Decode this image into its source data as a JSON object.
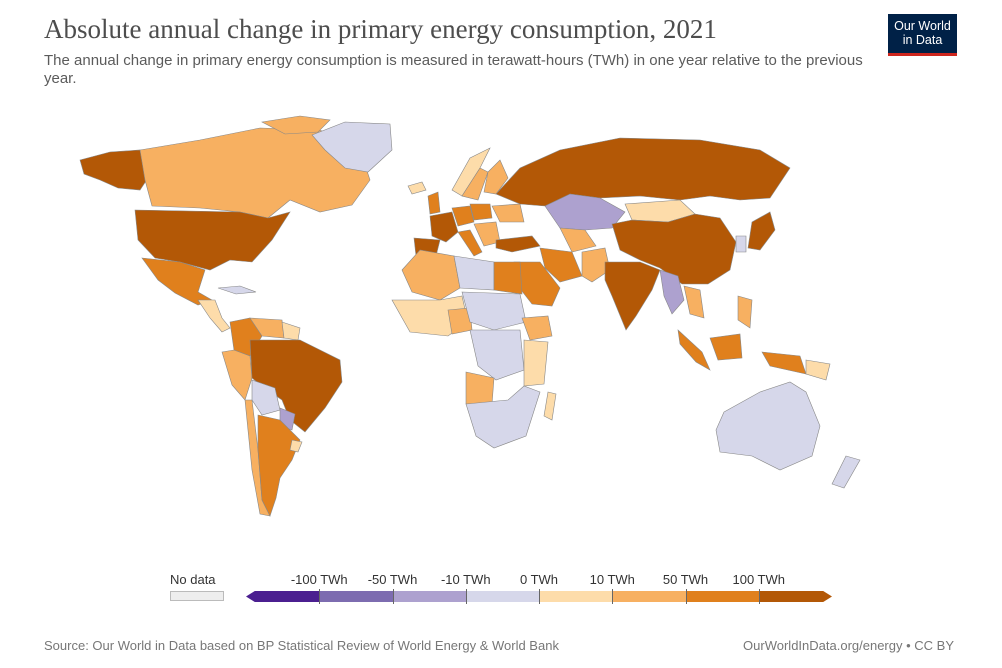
{
  "header": {
    "title": "Absolute annual change in primary energy consumption, 2021",
    "subtitle": "The annual change in primary energy consumption is measured in terawatt-hours (TWh) in one year relative to the previous year."
  },
  "logo": {
    "line1": "Our World",
    "line2": "in Data",
    "bg_color": "#002147",
    "accent_color": "#ce261e"
  },
  "legend": {
    "no_data_label": "No data",
    "no_data_color": "#eeeeee",
    "tick_labels": [
      "-100 TWh",
      "-50 TWh",
      "-10 TWh",
      "0 TWh",
      "10 TWh",
      "50 TWh",
      "100 TWh"
    ],
    "bin_colors": [
      "#4b1f90",
      "#7d6cb0",
      "#ada1cf",
      "#d6d7ea",
      "#fddcaa",
      "#f7b061",
      "#e0801d",
      "#b35806"
    ]
  },
  "map_data": {
    "palette": {
      "neg_large": "#7d6cb0",
      "neg_medium": "#ada1cf",
      "neg_small": "#d6d7ea",
      "pos_small": "#fddcaa",
      "pos_medium": "#f7b061",
      "pos_large": "#e0801d",
      "pos_xlarge": "#b35806",
      "no_data": "#eeeeee"
    }
  },
  "footer": {
    "source": "Source: Our World in Data based on BP Statistical Review of World Energy & World Bank",
    "link": "OurWorldInData.org/energy • CC BY"
  }
}
